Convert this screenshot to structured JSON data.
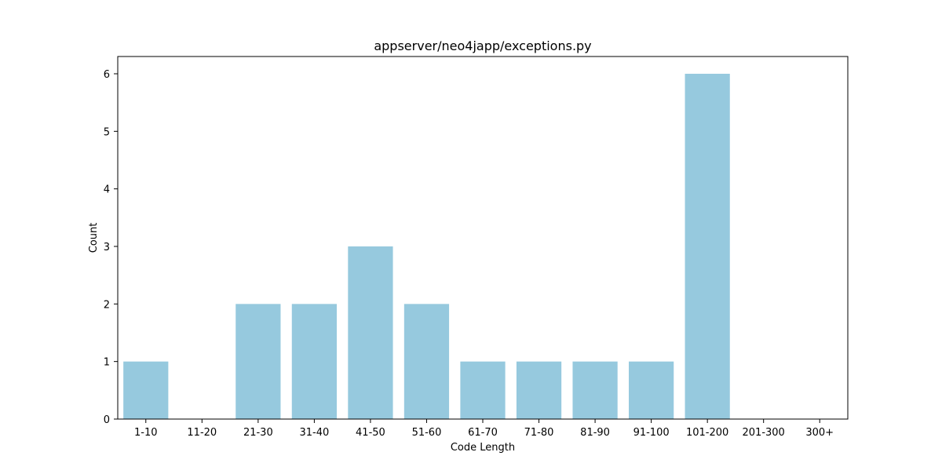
{
  "chart_data": {
    "type": "bar",
    "title": "appserver/neo4japp/exceptions.py",
    "xlabel": "Code Length",
    "ylabel": "Count",
    "categories": [
      "1-10",
      "11-20",
      "21-30",
      "31-40",
      "41-50",
      "51-60",
      "61-70",
      "71-80",
      "81-90",
      "91-100",
      "101-200",
      "201-300",
      "300+"
    ],
    "values": [
      1,
      0,
      2,
      2,
      3,
      2,
      1,
      1,
      1,
      1,
      6,
      0,
      0
    ],
    "ylim": [
      0,
      6.3
    ],
    "yticks": [
      "0",
      "1",
      "2",
      "3",
      "4",
      "5",
      "6"
    ],
    "bar_color": "#96c9de",
    "grid": false,
    "legend": "none"
  }
}
